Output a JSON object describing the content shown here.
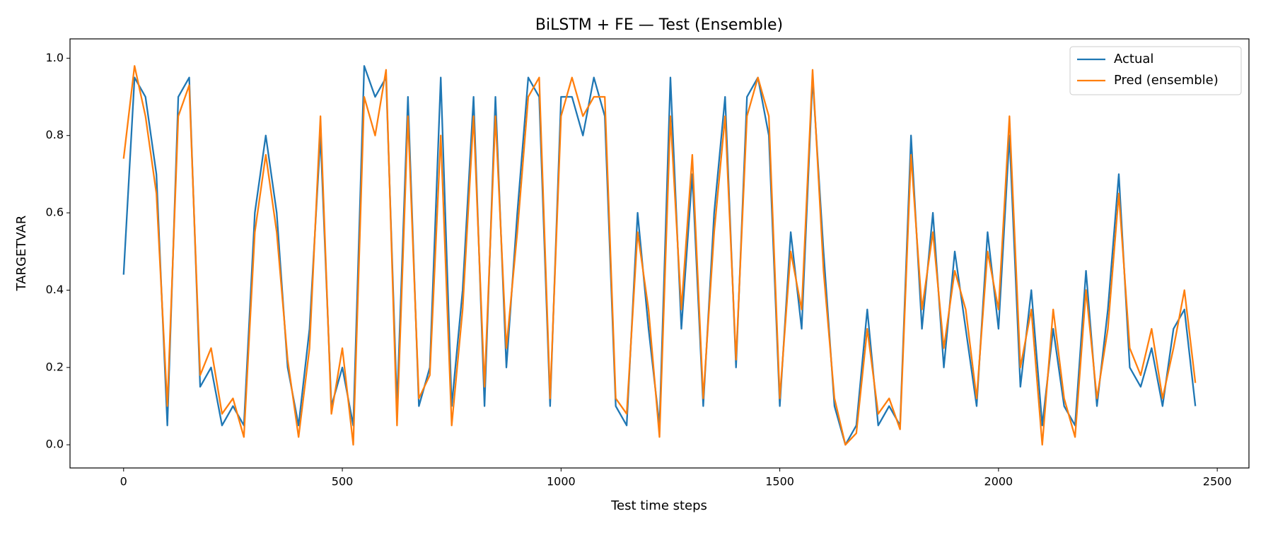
{
  "chart_data": {
    "type": "line",
    "title": "BiLSTM + FE — Test (Ensemble)",
    "x_label": "Test time steps",
    "y_label": "TARGETVAR",
    "x": [
      0,
      25,
      50,
      75,
      100,
      125,
      150,
      175,
      200,
      225,
      250,
      275,
      300,
      325,
      350,
      375,
      400,
      425,
      450,
      475,
      500,
      525,
      550,
      575,
      600,
      625,
      650,
      675,
      700,
      725,
      750,
      775,
      800,
      825,
      850,
      875,
      900,
      925,
      950,
      975,
      1000,
      1025,
      1050,
      1075,
      1100,
      1125,
      1150,
      1175,
      1200,
      1225,
      1250,
      1275,
      1300,
      1325,
      1350,
      1375,
      1400,
      1425,
      1450,
      1475,
      1500,
      1525,
      1550,
      1575,
      1600,
      1625,
      1650,
      1675,
      1700,
      1725,
      1750,
      1775,
      1800,
      1825,
      1850,
      1875,
      1900,
      1925,
      1950,
      1975,
      2000,
      2025,
      2050,
      2075,
      2100,
      2125,
      2150,
      2175,
      2200,
      2225,
      2250,
      2275,
      2300,
      2325,
      2350,
      2375,
      2400,
      2425,
      2450
    ],
    "series": [
      {
        "name": "Actual",
        "color": "#1f77b4",
        "values": [
          0.44,
          0.95,
          0.9,
          0.7,
          0.05,
          0.9,
          0.95,
          0.15,
          0.2,
          0.05,
          0.1,
          0.05,
          0.6,
          0.8,
          0.6,
          0.2,
          0.05,
          0.3,
          0.8,
          0.1,
          0.2,
          0.05,
          0.98,
          0.9,
          0.95,
          0.1,
          0.9,
          0.1,
          0.2,
          0.95,
          0.1,
          0.4,
          0.9,
          0.1,
          0.9,
          0.2,
          0.6,
          0.95,
          0.9,
          0.1,
          0.9,
          0.9,
          0.8,
          0.95,
          0.85,
          0.1,
          0.05,
          0.6,
          0.3,
          0.05,
          0.95,
          0.3,
          0.7,
          0.1,
          0.6,
          0.9,
          0.2,
          0.9,
          0.95,
          0.8,
          0.1,
          0.55,
          0.3,
          0.95,
          0.5,
          0.1,
          0.0,
          0.05,
          0.35,
          0.05,
          0.1,
          0.05,
          0.8,
          0.3,
          0.6,
          0.2,
          0.5,
          0.3,
          0.1,
          0.55,
          0.3,
          0.8,
          0.15,
          0.4,
          0.05,
          0.3,
          0.1,
          0.05,
          0.45,
          0.1,
          0.35,
          0.7,
          0.2,
          0.15,
          0.25,
          0.1,
          0.3,
          0.35,
          0.1
        ]
      },
      {
        "name": "Pred (ensemble)",
        "color": "#ff7f0e",
        "values": [
          0.74,
          0.98,
          0.85,
          0.65,
          0.1,
          0.85,
          0.93,
          0.18,
          0.25,
          0.08,
          0.12,
          0.02,
          0.55,
          0.75,
          0.55,
          0.22,
          0.02,
          0.25,
          0.85,
          0.08,
          0.25,
          0.0,
          0.9,
          0.8,
          0.97,
          0.05,
          0.85,
          0.12,
          0.18,
          0.8,
          0.05,
          0.35,
          0.85,
          0.15,
          0.85,
          0.25,
          0.55,
          0.9,
          0.95,
          0.12,
          0.85,
          0.95,
          0.85,
          0.9,
          0.9,
          0.12,
          0.08,
          0.55,
          0.35,
          0.02,
          0.85,
          0.35,
          0.75,
          0.12,
          0.55,
          0.85,
          0.22,
          0.85,
          0.95,
          0.85,
          0.12,
          0.5,
          0.35,
          0.97,
          0.45,
          0.12,
          0.0,
          0.03,
          0.3,
          0.08,
          0.12,
          0.04,
          0.75,
          0.35,
          0.55,
          0.25,
          0.45,
          0.35,
          0.12,
          0.5,
          0.35,
          0.85,
          0.2,
          0.35,
          0.0,
          0.35,
          0.12,
          0.02,
          0.4,
          0.12,
          0.3,
          0.65,
          0.25,
          0.18,
          0.3,
          0.12,
          0.25,
          0.4,
          0.16
        ]
      }
    ],
    "xlim": [
      -122.5,
      2572.5
    ],
    "ylim": [
      -0.06,
      1.05
    ],
    "xticks": [
      0,
      500,
      1000,
      1500,
      2000,
      2500
    ],
    "yticks": [
      {
        "value": 0,
        "label": "0.0"
      },
      0.2,
      0.4,
      0.6,
      0.8,
      {
        "value": 1,
        "label": "1.0"
      }
    ],
    "legend": "upper right"
  }
}
